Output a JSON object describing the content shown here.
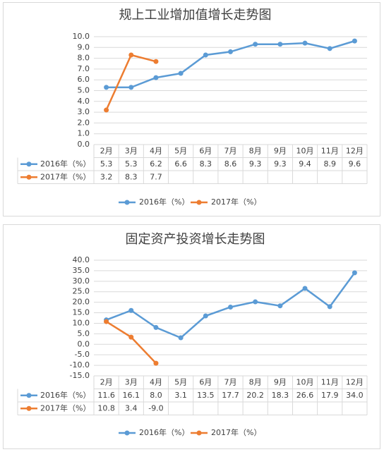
{
  "chart_data": [
    {
      "type": "line",
      "title": "规上工业增加值增长走势图",
      "categories": [
        "2月",
        "3月",
        "4月",
        "5月",
        "6月",
        "7月",
        "8月",
        "9月",
        "10月",
        "11月",
        "12月"
      ],
      "series": [
        {
          "name": "2016年（%）",
          "color": "#5b9bd5",
          "values": [
            5.3,
            5.3,
            6.2,
            6.6,
            8.3,
            8.6,
            9.3,
            9.3,
            9.4,
            8.9,
            9.6
          ]
        },
        {
          "name": "2017年（%）",
          "color": "#ed7d31",
          "values": [
            3.2,
            8.3,
            7.7,
            null,
            null,
            null,
            null,
            null,
            null,
            null,
            null
          ]
        }
      ],
      "ylim": [
        0,
        10
      ],
      "yticks": [
        {
          "value": 0,
          "label": "0.0"
        },
        {
          "value": 1,
          "label": "1.0"
        },
        {
          "value": 2,
          "label": "2.0"
        },
        {
          "value": 3,
          "label": "3.0"
        },
        {
          "value": 4,
          "label": "4.0"
        },
        {
          "value": 5,
          "label": "5.0"
        },
        {
          "value": 6,
          "label": "6.0"
        },
        {
          "value": 7,
          "label": "7.0"
        },
        {
          "value": 8,
          "label": "8.0"
        },
        {
          "value": 9,
          "label": "9.0"
        },
        {
          "value": 10,
          "label": "10.0"
        }
      ],
      "grid": true,
      "legend": "bottom"
    },
    {
      "type": "line",
      "title": "固定资产投资增长走势图",
      "categories": [
        "2月",
        "3月",
        "4月",
        "5月",
        "6月",
        "7月",
        "8月",
        "9月",
        "10月",
        "11月",
        "12月"
      ],
      "series": [
        {
          "name": "2016年（%）",
          "color": "#5b9bd5",
          "values": [
            11.6,
            16.1,
            8.0,
            3.1,
            13.5,
            17.7,
            20.2,
            18.3,
            26.6,
            17.9,
            34.0
          ],
          "value_labels": [
            "11.6",
            "16.1",
            "8.0",
            "3.1",
            "13.5",
            "17.7",
            "20.2",
            "18.3",
            "26.6",
            "17.9",
            "34.0"
          ]
        },
        {
          "name": "2017年（%）",
          "color": "#ed7d31",
          "values": [
            10.8,
            3.4,
            -9.0,
            null,
            null,
            null,
            null,
            null,
            null,
            null,
            null
          ],
          "value_labels": [
            "10.8",
            "3.4",
            "-9.0",
            null,
            null,
            null,
            null,
            null,
            null,
            null,
            null
          ]
        }
      ],
      "ylim": [
        -15,
        40
      ],
      "yticks": [
        {
          "value": -15,
          "label": "-15.0"
        },
        {
          "value": -10,
          "label": "-10.0"
        },
        {
          "value": -5,
          "label": "-5.0"
        },
        {
          "value": 0,
          "label": "0.0"
        },
        {
          "value": 5,
          "label": "5.0"
        },
        {
          "value": 10,
          "label": "10.0"
        },
        {
          "value": 15,
          "label": "15.0"
        },
        {
          "value": 20,
          "label": "20.0"
        },
        {
          "value": 25,
          "label": "25.0"
        },
        {
          "value": 30,
          "label": "30.0"
        },
        {
          "value": 35,
          "label": "35.0"
        },
        {
          "value": 40,
          "label": "40.0"
        }
      ],
      "grid": true,
      "legend": "bottom"
    }
  ]
}
